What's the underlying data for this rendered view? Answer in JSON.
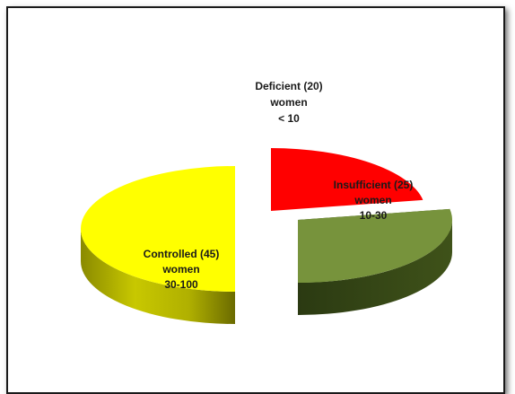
{
  "chart_data": {
    "type": "pie",
    "style": "3d-exploded",
    "categories": [
      "Deficient",
      "Insufficient",
      "Controlled"
    ],
    "values": [
      20,
      25,
      45
    ],
    "ranges": [
      "< 10",
      "10-30",
      "30-100"
    ],
    "unit": "women",
    "colors": {
      "Deficient": "#ff0000",
      "Insufficient": "#77933c",
      "Controlled": "#ffff00"
    },
    "labels": [
      {
        "line1": "Deficient (20)",
        "line2": "women",
        "line3": "< 10"
      },
      {
        "line1": "Insufficient (25)",
        "line2": "women",
        "line3": "10-30"
      },
      {
        "line1": "Controlled (45)",
        "line2": "women",
        "line3": "30-100"
      }
    ]
  }
}
